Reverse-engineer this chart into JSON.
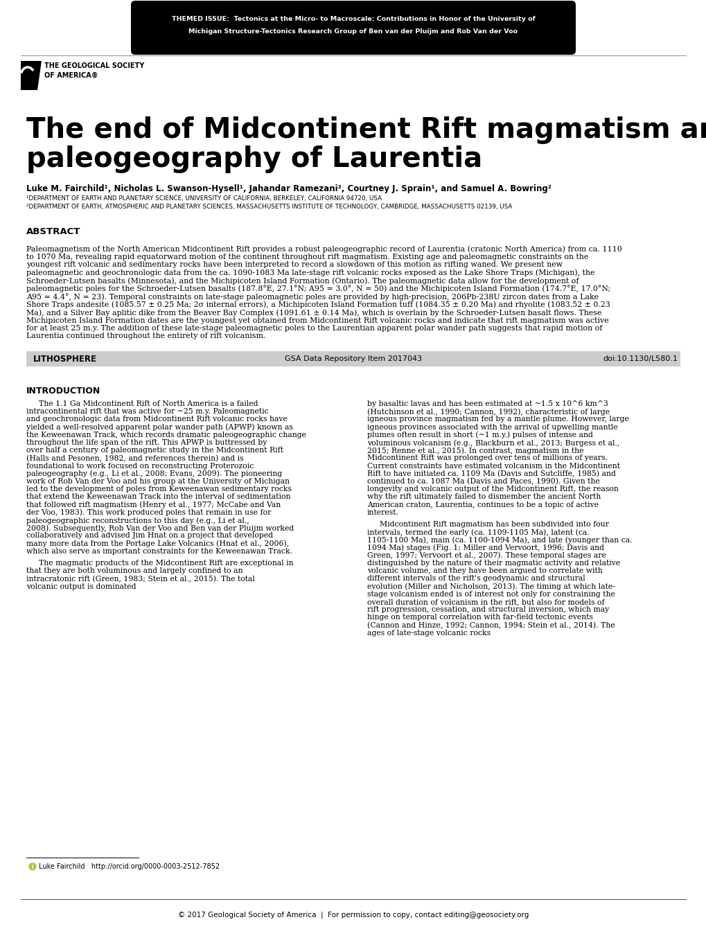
{
  "header_bg": "#000000",
  "header_text_line1": "THEMED ISSUE:  Tectonics at the Micro- to Macroscale: Contributions in Honor of the University of",
  "header_text_line2": "Michigan Structure-Tectonics Research Group of Ben van der Pluijm and Rob Van der Voo",
  "header_text_color": "#ffffff",
  "title_line1": "The end of Midcontinent Rift magmatism and the",
  "title_line2": "paleogeography of Laurentia",
  "authors": "Luke M. Fairchild¹, Nicholas L. Swanson-Hysell¹, Jahandar Ramezani², Courtney J. Sprain¹, and Samuel A. Bowring²",
  "affil1": "¹DEPARTMENT OF EARTH AND PLANETARY SCIENCE, UNIVERSITY OF CALIFORNIA, BERKELEY, CALIFORNIA 94720, USA",
  "affil2": "²DEPARTMENT OF EARTH, ATMOSPHERIC AND PLANETARY SCIENCES, MASSACHUSETTS INSTITUTE OF TECHNOLOGY, CAMBRIDGE, MASSACHUSETTS 02139, USA",
  "abstract_heading": "ABSTRACT",
  "abstract_text": "Paleomagnetism of the North American Midcontinent Rift provides a robust paleogeographic record of Laurentia (cratonic North America) from ca. 1110 to 1070 Ma, revealing rapid equatorward motion of the continent throughout rift magmatism. Existing age and paleomagnetic constraints on the youngest rift volcanic and sedimentary rocks have been interpreted to record a slowdown of this motion as rifting waned. We present new paleomagnetic and geochronologic data from the ca. 1090-1083 Ma late-stage rift volcanic rocks exposed as the Lake Shore Traps (Michigan), the Schroeder-Lutsen basalts (Minnesota), and the Michipicoten Island Formation (Ontario). The paleomagnetic data allow for the development of paleomagnetic poles for the Schroeder-Lutsen basalts (187.8°E, 27.1°N; A95 = 3.0°, N = 50) and the Michipicoten Island Formation (174.7°E, 17.0°N; A95 = 4.4°, N = 23). Temporal constraints on late-stage paleomagnetic poles are provided by high-precision, 206Pb-238U zircon dates from a Lake Shore Traps andesite (1085.57 ± 0.25 Ma; 2σ internal errors), a Michipicoten Island Formation tuff (1084.35 ± 0.20 Ma) and rhyolite (1083.52 ± 0.23 Ma), and a Silver Bay aplitic dike from the Beaver Bay Complex (1091.61 ± 0.14 Ma), which is overlain by the Schroeder-Lutsen basalt flows. These Michipicoten Island Formation dates are the youngest yet obtained from Midcontinent Rift volcanic rocks and indicate that rift magmatism was active for at least 25 m.y. The addition of these late-stage paleomagnetic poles to the Laurentian apparent polar wander path suggests that rapid motion of Laurentia continued throughout the entirety of rift volcanism.",
  "lithosphere_bar_bg": "#cccccc",
  "lithosphere_label": "LITHOSPHERE",
  "gsa_data": "GSA Data Repository Item 2017043",
  "doi": "doi:10.1130/L580.1",
  "intro_heading": "INTRODUCTION",
  "intro_col1_p1": "The 1.1 Ga Midcontinent Rift of North America is a failed intracontinental rift that was active for ~25 m.y. Paleomagnetic and geochronologic data from Midcontinent Rift volcanic rocks have yielded a well-resolved apparent polar wander path (APWP) known as the Keweenawan Track, which records dramatic paleogeographic change throughout the life span of the rift. This APWP is buttressed by over half a century of paleomagnetic study in the Midcontinent Rift (Halls and Pesonen, 1982, and references therein) and is foundational to work focused on reconstructing Proterozoic paleogeography (e.g., Li et al., 2008; Evans, 2009). The pioneering work of Rob Van der Voo and his group at the University of Michigan led to the development of poles from Keweenawan sedimentary rocks that extend the Keweenawan Track into the interval of sedimentation that followed rift magmatism (Henry et al., 1977; McCabe and Van der Voo, 1983). This work produced poles that remain in use for paleogeographic reconstructions to this day (e.g., Li et al., 2008). Subsequently, Rob Van der Voo and Ben van der Pluijm worked collaboratively and advised Jim Hnat on a project that developed many more data from the Portage Lake Volcanics (Hnat et al., 2006), which also serve as important constraints for the Keweenawan Track.",
  "intro_col1_p2": "The magmatic products of the Midcontinent Rift are exceptional in that they are both voluminous and largely confined to an intracratonic rift (Green, 1983; Stein et al., 2015). The total volcanic output is dominated",
  "intro_col2_p1": "by basaltic lavas and has been estimated at ~1.5 x 10^6 km^3 (Hutchinson et al., 1990; Cannon, 1992), characteristic of large igneous province magmatism fed by a mantle plume. However, large igneous provinces associated with the arrival of upwelling mantle plumes often result in short (~1 m.y.) pulses of intense and voluminous volcanism (e.g., Blackburn et al., 2013; Burgess et al., 2015; Renne et al., 2015). In contrast, magmatism in the Midcontinent Rift was prolonged over tens of millions of years. Current constraints have estimated volcanism in the Midcontinent Rift to have initiated ca. 1109 Ma (Davis and Sutcliffe, 1985) and continued to ca. 1087 Ma (Davis and Paces, 1990). Given the longevity and volcanic output of the Midcontinent Rift, the reason why the rift ultimately failed to dismember the ancient North American craton, Laurentia, continues to be a topic of active interest.",
  "intro_col2_p2": "Midcontinent Rift magmatism has been subdivided into four intervals, termed the early (ca. 1109-1105 Ma), latent (ca. 1105-1100 Ma), main (ca. 1100-1094 Ma), and late (younger than ca. 1094 Ma) stages (Fig. 1; Miller and Vervoort, 1996; Davis and Green, 1997; Vervoort et al., 2007). These temporal stages are distinguished by the nature of their magmatic activity and relative volcanic volume, and they have been argued to correlate with different intervals of the rift's geodynamic and structural evolution (Miller and Nicholson, 2013). The timing at which late-stage volcanism ended is of interest not only for constraining the overall duration of volcanism in the rift, but also for models of rift progression, cessation, and structural inversion, which may hinge on temporal correlation with far-field tectonic events (Cannon and Hinze, 1992; Cannon, 1994; Stein et al., 2014). The ages of late-stage volcanic rocks",
  "footer_text": "© 2017 Geological Society of America  |  For permission to copy, contact editing@geosociety.org",
  "orcid_text": "Luke Fairchild   http://orcid.org/0000-0003-2512-7852",
  "background_color": "#ffffff",
  "text_color": "#000000"
}
